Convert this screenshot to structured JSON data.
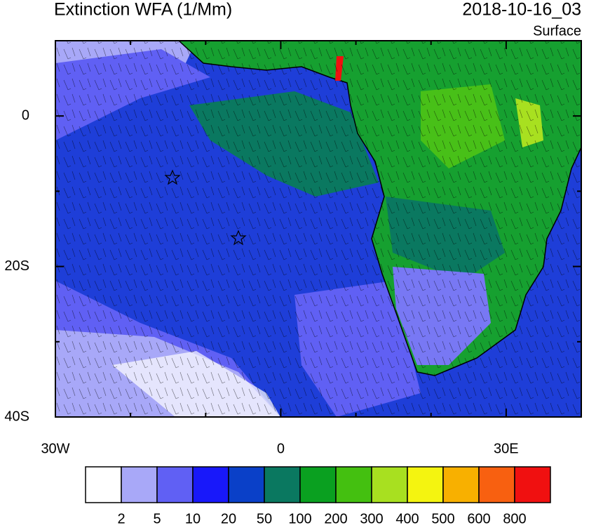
{
  "title": "Extinction WFA (1/Mm)",
  "time": "2018-10-16_03",
  "level": "Surface",
  "map": {
    "xlim": [
      -30,
      40
    ],
    "ylim": [
      -40,
      10
    ],
    "xticks": [
      {
        "value": -30,
        "label": "30W"
      },
      0,
      {
        "value": 30,
        "label": "30E"
      }
    ],
    "yticks": [
      0,
      {
        "value": -20,
        "label": "20S"
      },
      {
        "value": -40,
        "label": "40S"
      }
    ],
    "minor_xticks": [
      -20,
      -10,
      10,
      20,
      40
    ],
    "minor_yticks": [
      10,
      -10,
      -30
    ]
  },
  "colorbar": {
    "labels": [
      2,
      5,
      10,
      20,
      50,
      100,
      200,
      300,
      400,
      500,
      600,
      800
    ],
    "colors": [
      "#ffffff",
      "#a8a8f8",
      "#6060f4",
      "#1818fa",
      "#0a40c8",
      "#0a7860",
      "#0aa020",
      "#44c010",
      "#a8e020",
      "#f4f410",
      "#f8b000",
      "#f86010",
      "#f01010"
    ]
  }
}
